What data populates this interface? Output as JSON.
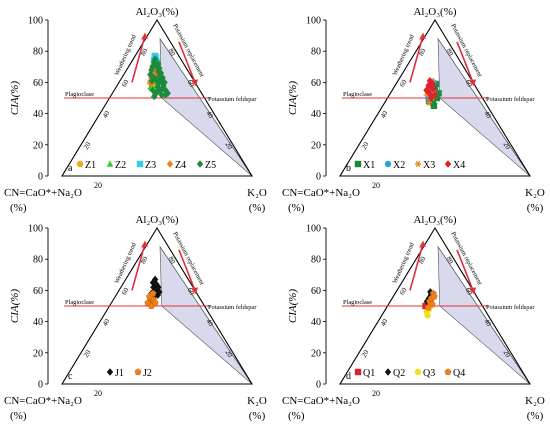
{
  "colors": {
    "shade": "#d9d9ee",
    "red_line": "#e0303a",
    "arrow": "#e0303a",
    "frame": "#000000"
  },
  "chart_data": [
    {
      "id": "a",
      "type": "scatter",
      "panel_letter": "a",
      "top_label": "Al₂O₃(%)",
      "left_label_line1": "CN=CaO*+Na₂O",
      "left_label_line2": "(%)",
      "right_label_line1": "K₂O",
      "right_label_line2": "(%)",
      "ylabel": "CIA(%)",
      "yticks": [
        0,
        20,
        40,
        60,
        80,
        100
      ],
      "ylim": [
        0,
        100
      ],
      "plagioclase_label": "Plagioclase",
      "kfeldspar_label": "Potassium feldspar",
      "weathering_label": "Weathering trend",
      "replacement_label": "Potassium replacement",
      "series": [
        {
          "name": "Z1",
          "marker": "circle",
          "color": "#f5a623",
          "points": [
            [
              43,
              62
            ],
            [
              45,
              65
            ],
            [
              41,
              60
            ],
            [
              47,
              68
            ],
            [
              44,
              58
            ],
            [
              48,
              63
            ],
            [
              42,
              67
            ],
            [
              46,
              61
            ],
            [
              50,
              66
            ],
            [
              43,
              70
            ],
            [
              47,
              59
            ],
            [
              49,
              71
            ]
          ]
        },
        {
          "name": "Z2",
          "marker": "triangle",
          "color": "#33cc33",
          "points": [
            [
              44,
              56
            ],
            [
              46,
              60
            ],
            [
              48,
              54
            ],
            [
              45,
              64
            ],
            [
              50,
              58
            ],
            [
              42,
              57
            ],
            [
              47,
              66
            ],
            [
              51,
              62
            ],
            [
              49,
              55
            ],
            [
              46,
              70
            ]
          ]
        },
        {
          "name": "Z3",
          "marker": "square",
          "color": "#33ccee",
          "points": [
            [
              46,
              72
            ],
            [
              48,
              76
            ],
            [
              44,
              74
            ],
            [
              50,
              73
            ],
            [
              47,
              69
            ],
            [
              45,
              77
            ]
          ]
        },
        {
          "name": "Z4",
          "marker": "diamond",
          "color": "#f07f1a",
          "points": [
            [
              42,
              63
            ],
            [
              44,
              66
            ],
            [
              46,
              68
            ],
            [
              48,
              65
            ],
            [
              50,
              69
            ],
            [
              45,
              71
            ],
            [
              43,
              59
            ],
            [
              47,
              62
            ],
            [
              49,
              67
            ],
            [
              51,
              64
            ]
          ]
        },
        {
          "name": "Z5",
          "marker": "diamond",
          "color": "#1a8a3c",
          "points": [
            [
              40,
              65
            ],
            [
              42,
              70
            ],
            [
              44,
              73
            ],
            [
              46,
              75
            ],
            [
              48,
              72
            ],
            [
              50,
              70
            ],
            [
              52,
              67
            ],
            [
              54,
              64
            ],
            [
              56,
              61
            ],
            [
              58,
              58
            ],
            [
              60,
              55
            ],
            [
              62,
              53
            ],
            [
              55,
              52
            ],
            [
              57,
              56
            ],
            [
              53,
              60
            ],
            [
              51,
              57
            ],
            [
              49,
              53
            ],
            [
              47,
              51
            ],
            [
              52,
              72
            ],
            [
              54,
              69
            ],
            [
              56,
              66
            ],
            [
              58,
              63
            ],
            [
              60,
              60
            ],
            [
              45,
              55
            ],
            [
              43,
              61
            ],
            [
              41,
              68
            ],
            [
              46,
              63
            ],
            [
              50,
              61
            ],
            [
              53,
              55
            ],
            [
              59,
              52
            ]
          ]
        }
      ]
    },
    {
      "id": "b",
      "type": "scatter",
      "panel_letter": "b",
      "top_label": "Al₂O₃(%)",
      "left_label_line1": "CN=CaO*+Na₂O",
      "left_label_line2": "(%)",
      "right_label_line1": "K₂O",
      "right_label_line2": "(%)",
      "ylabel": "CIA(%)",
      "yticks": [
        0,
        20,
        40,
        60,
        80,
        100
      ],
      "ylim": [
        0,
        100
      ],
      "plagioclase_label": "Plagioclase",
      "kfeldspar_label": "Potassium feldspar",
      "weathering_label": "Weathering trend",
      "replacement_label": "Potassium replacement",
      "series": [
        {
          "name": "X1",
          "marker": "square",
          "color": "#1a8a3c",
          "points": [
            [
              44,
              48
            ],
            [
              46,
              52
            ],
            [
              48,
              47
            ],
            [
              50,
              55
            ],
            [
              52,
              50
            ],
            [
              47,
              57
            ],
            [
              49,
              45
            ],
            [
              51,
              59
            ],
            [
              54,
              53
            ],
            [
              45,
              54
            ]
          ]
        },
        {
          "name": "X2",
          "marker": "circle",
          "color": "#2aa0e0",
          "points": [
            [
              42,
              54
            ],
            [
              44,
              58
            ],
            [
              46,
              56
            ],
            [
              48,
              60
            ],
            [
              45,
              52
            ],
            [
              43,
              50
            ],
            [
              47,
              54
            ]
          ]
        },
        {
          "name": "X3",
          "marker": "asterisk",
          "color": "#f07f1a",
          "points": [
            [
              41,
              52
            ],
            [
              43,
              56
            ],
            [
              45,
              59
            ],
            [
              47,
              50
            ],
            [
              49,
              53
            ],
            [
              44,
              47
            ],
            [
              46,
              61
            ]
          ]
        },
        {
          "name": "X4",
          "marker": "diamond",
          "color": "#e0202a",
          "points": [
            [
              40,
              55
            ],
            [
              42,
              58
            ],
            [
              44,
              53
            ],
            [
              46,
              50
            ],
            [
              48,
              56
            ],
            [
              43,
              61
            ],
            [
              45,
              57
            ],
            [
              47,
              59
            ],
            [
              50,
              52
            ]
          ]
        }
      ]
    },
    {
      "id": "c",
      "type": "scatter",
      "panel_letter": "c",
      "top_label": "Al₂O₃(%)",
      "left_label_line1": "CN=CaO*+Na₂O",
      "left_label_line2": "(%)",
      "right_label_line1": "K₂O",
      "right_label_line2": "(%)",
      "ylabel": "CIA(%)",
      "yticks": [
        0,
        20,
        40,
        60,
        80,
        100
      ],
      "ylim": [
        0,
        100
      ],
      "plagioclase_label": "Plagioclase",
      "kfeldspar_label": "Potassium feldspar",
      "weathering_label": "Weathering trend",
      "replacement_label": "Potassium replacement",
      "series": [
        {
          "name": "J1",
          "marker": "diamond",
          "color": "#111111",
          "points": [
            [
              43,
              58
            ],
            [
              45,
              62
            ],
            [
              47,
              60
            ],
            [
              49,
              64
            ],
            [
              46,
              56
            ],
            [
              48,
              58
            ],
            [
              50,
              60
            ],
            [
              44,
              65
            ],
            [
              52,
              62
            ],
            [
              51,
              57
            ],
            [
              47,
              67
            ],
            [
              53,
              59
            ],
            [
              45,
              53
            ]
          ]
        },
        {
          "name": "J2",
          "marker": "pentagon",
          "color": "#f07f1a",
          "points": [
            [
              40,
              52
            ],
            [
              42,
              55
            ],
            [
              44,
              50
            ],
            [
              46,
              54
            ],
            [
              48,
              52
            ],
            [
              43,
              57
            ],
            [
              45,
              58
            ],
            [
              41,
              56
            ]
          ]
        }
      ]
    },
    {
      "id": "d",
      "type": "scatter",
      "panel_letter": "d",
      "top_label": "Al₂O₃(%)",
      "left_label_line1": "CN=CaO*+Na₂O",
      "left_label_line2": "(%)",
      "right_label_line1": "K₂O",
      "right_label_line2": "(%)",
      "ylabel": "CIA(%)",
      "yticks": [
        0,
        20,
        40,
        60,
        80,
        100
      ],
      "ylim": [
        0,
        100
      ],
      "plagioclase_label": "Plagioclase",
      "kfeldspar_label": "Potassium feldspar",
      "weathering_label": "Weathering trend",
      "replacement_label": "Potassium replacement",
      "series": [
        {
          "name": "Q1",
          "marker": "square",
          "color": "#e0202a",
          "points": [
            [
              42,
              51
            ],
            [
              44,
              53
            ],
            [
              40,
              50
            ]
          ]
        },
        {
          "name": "Q2",
          "marker": "diamond",
          "color": "#111111",
          "points": [
            [
              43,
              55
            ],
            [
              45,
              57
            ],
            [
              41,
              53
            ],
            [
              47,
              56
            ],
            [
              44,
              59
            ],
            [
              46,
              52
            ]
          ]
        },
        {
          "name": "Q3",
          "marker": "circle",
          "color": "#f5e020",
          "points": [
            [
              42,
              46
            ],
            [
              44,
              48
            ],
            [
              43,
              44
            ],
            [
              45,
              50
            ]
          ]
        },
        {
          "name": "Q4",
          "marker": "pentagon",
          "color": "#f07f1a",
          "points": [
            [
              44,
              53
            ],
            [
              46,
              55
            ],
            [
              48,
              58
            ],
            [
              47,
              51
            ],
            [
              49,
              56
            ],
            [
              43,
              49
            ]
          ]
        }
      ]
    }
  ]
}
